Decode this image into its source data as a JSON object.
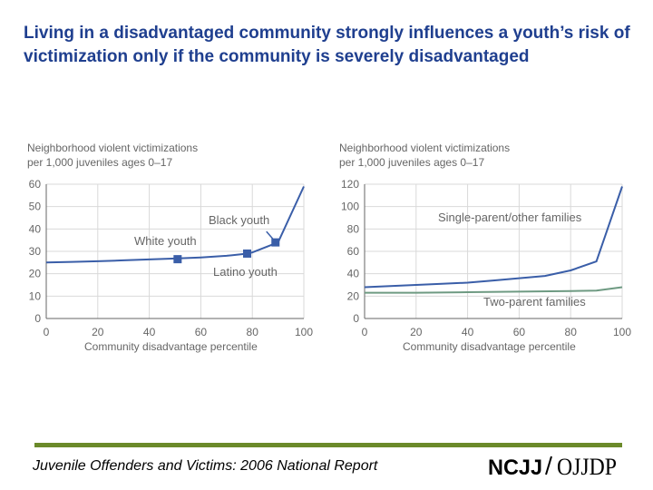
{
  "slide": {
    "title": "Living in a disadvantaged community strongly influences a youth’s risk of victimization only if the community is severely disadvantaged"
  },
  "footer": {
    "title": "Juvenile Offenders and Victims: 2006 National Report",
    "logo_left": "NCJJ",
    "logo_right": "OJJDP"
  },
  "colors": {
    "blue_series": "#3a5ea8",
    "green_series": "#6e9a82",
    "grid": "#d9d9d9",
    "axis": "#666666",
    "title": "#1f3f8f",
    "footer_rule": "#6b8a2a"
  },
  "chart_data": [
    {
      "type": "line",
      "ylabel_line1": "Neighborhood violent victimizations",
      "ylabel_line2": "per 1,000 juveniles ages 0–17",
      "xlabel": "Community disadvantage percentile",
      "xlim": [
        0,
        100
      ],
      "ylim": [
        0,
        60
      ],
      "xticks": [
        0,
        20,
        40,
        60,
        80,
        100
      ],
      "yticks": [
        0,
        10,
        20,
        30,
        40,
        50,
        60
      ],
      "grid": true,
      "series": [
        {
          "name": "youth",
          "x": [
            0,
            10,
            20,
            30,
            40,
            50,
            60,
            70,
            78,
            80,
            90,
            100
          ],
          "y": [
            25,
            25.3,
            25.6,
            26,
            26.4,
            26.8,
            27.3,
            28,
            29,
            29.5,
            34,
            59
          ]
        }
      ],
      "markers": [
        {
          "label": "White youth",
          "x": 51,
          "y": 26.5
        },
        {
          "label": "Latino youth",
          "x": 78,
          "y": 29
        },
        {
          "label": "Black youth",
          "x": 89,
          "y": 34
        }
      ],
      "annotations": [
        "Black youth",
        "White youth",
        "Latino youth"
      ]
    },
    {
      "type": "line",
      "ylabel_line1": "Neighborhood violent victimizations",
      "ylabel_line2": "per 1,000 juveniles ages 0–17",
      "xlabel": "Community disadvantage percentile",
      "xlim": [
        0,
        100
      ],
      "ylim": [
        0,
        120
      ],
      "xticks": [
        0,
        20,
        40,
        60,
        80,
        100
      ],
      "yticks": [
        0,
        20,
        40,
        60,
        80,
        100,
        120
      ],
      "grid": true,
      "series": [
        {
          "name": "Single-parent/other families",
          "x": [
            0,
            10,
            20,
            30,
            40,
            50,
            60,
            70,
            80,
            90,
            100
          ],
          "y": [
            28,
            29,
            30,
            31,
            32,
            34,
            36,
            38,
            43,
            51,
            118
          ]
        },
        {
          "name": "Two-parent families",
          "x": [
            0,
            20,
            40,
            60,
            80,
            90,
            100
          ],
          "y": [
            23,
            23,
            23.5,
            24,
            24.5,
            25,
            28
          ]
        }
      ],
      "annotations": [
        "Single-parent/other families",
        "Two-parent families"
      ]
    }
  ]
}
